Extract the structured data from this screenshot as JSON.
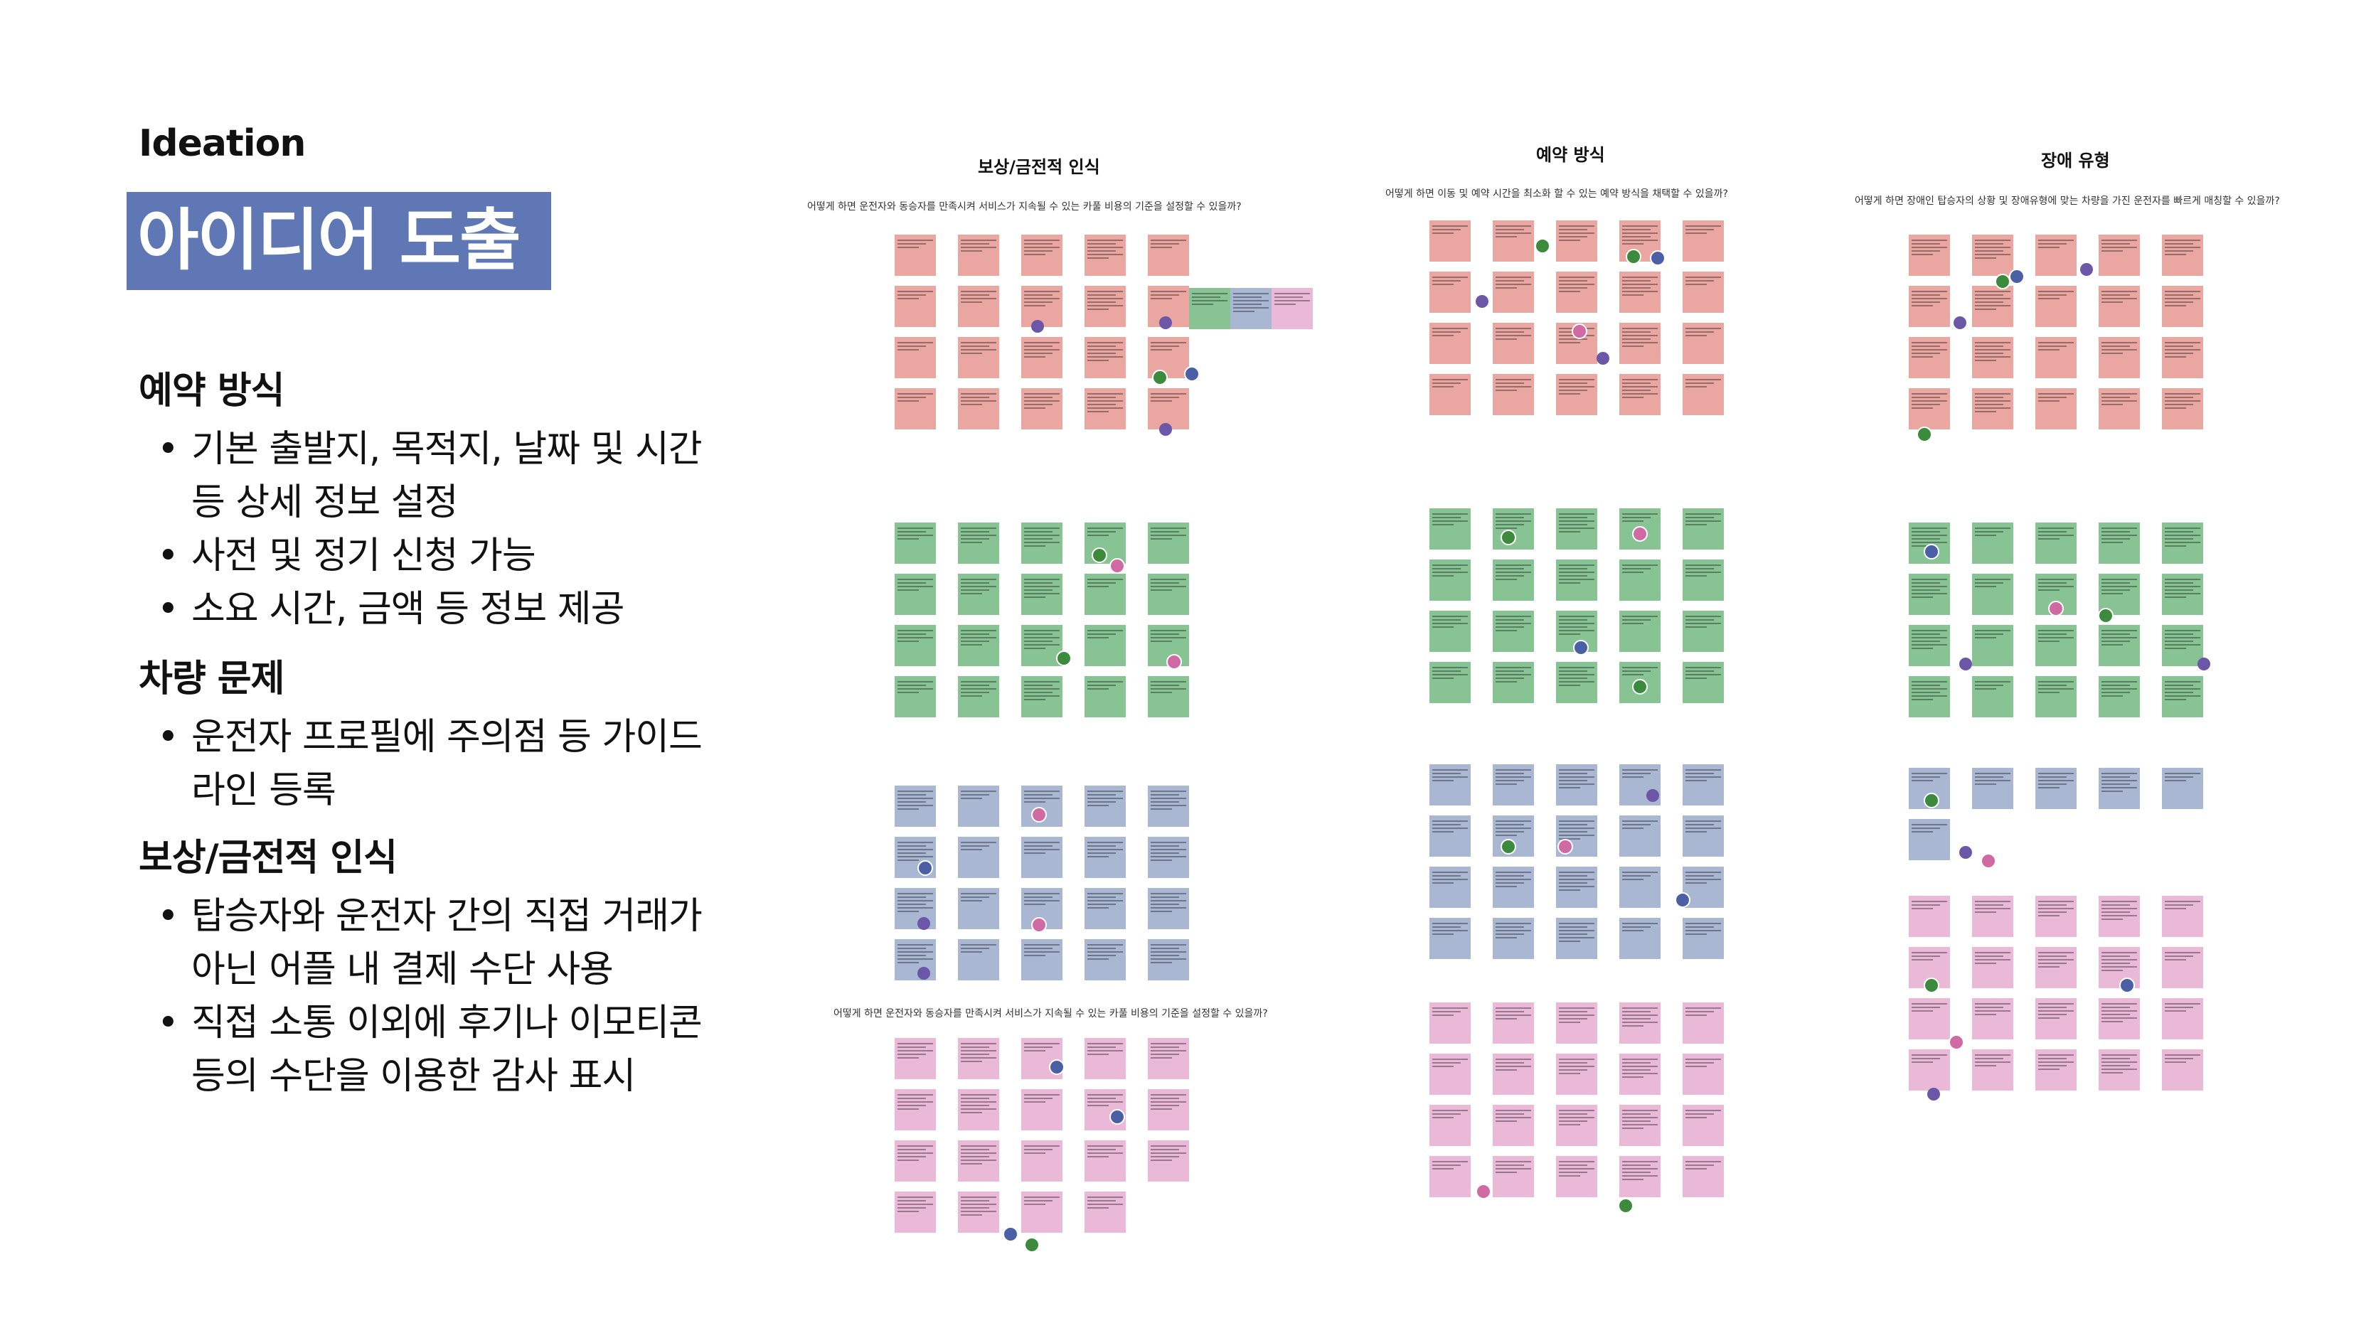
{
  "eyebrow": "Ideation",
  "title": "아이디어 도출",
  "sections": [
    {
      "heading": "예약 방식",
      "bullets": [
        "기본 출발지, 목적지, 날짜 및 시간",
        "등 상세 정보 설정",
        "사전 및 정기 신청 가능",
        "소요 시간, 금액 등 정보 제공"
      ]
    },
    {
      "heading": "차량 문제",
      "bullets": [
        "운전자 프로필에 주의점 등 가이드",
        "라인 등록"
      ]
    },
    {
      "heading": "보상/금전적 인식",
      "bullets": [
        "탑승자와 운전자 간의 직접 거래가",
        "아닌 어플 내 결제 수단 사용",
        "직접 소통 이외에 후기나 이모티콘",
        "등의 수단을 이용한 감사 표시"
      ]
    }
  ],
  "board": {
    "columns": [
      {
        "title": "보상/금전적 인식",
        "question": "어떻게 하면 운전자와 동승자를 만족시켜 서비스가 지속될 수 있는 카풀 비용의 기준을 설정할 수 있을까?",
        "question2": "어떻게 하면 운전자와 동승자를 만족시켜 서비스가 지속될 수 있는 카풀 비용의 기준을 설정할 수 있을까?"
      },
      {
        "title": "예약 방식",
        "question": "어떻게 하면 이동 및 예약 시간을 최소화 할 수 있는 예약 방식을 채택할 수 있을까?"
      },
      {
        "title": "장애 유형",
        "question": "어떻게 하면 장애인 탑승자의 상황 및 장애유형에 맞는 차량을 가진 운전자를 빠르게 매칭할 수 있을까?"
      }
    ]
  },
  "colors": {
    "title_bg": "#5f78b5",
    "red": "#eaa6a0",
    "green": "#88c493",
    "blue": "#a9b7d3",
    "pink": "#eab9d8",
    "vote": "#6b56a8"
  }
}
